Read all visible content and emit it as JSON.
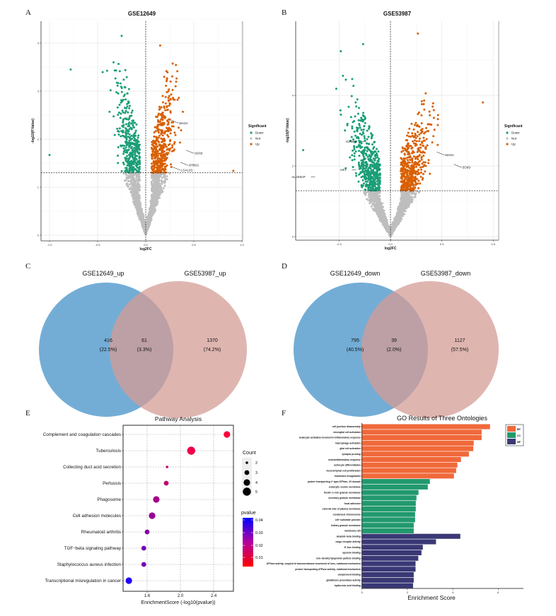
{
  "panel_labels": [
    "A",
    "B",
    "C",
    "D",
    "E",
    "F"
  ],
  "chart_data": [
    {
      "type": "scatter",
      "panel": "A",
      "title": "GSE12649",
      "xlabel": "log2FC",
      "ylabel": "-log10(P.Value)",
      "xlim": [
        -1.1,
        1.0
      ],
      "ylim": [
        -0.1,
        4.3
      ],
      "xticks": [
        "-1.0",
        "-0.5",
        "0.0",
        "0.5",
        "1.0"
      ],
      "xtick_values": [
        -1.0,
        -0.5,
        0.0,
        0.5,
        1.0
      ],
      "yticks": [
        "0",
        "1",
        "2",
        "3",
        "4"
      ],
      "ytick_values": [
        0,
        1,
        2,
        3,
        4
      ],
      "threshold_y": 1.3,
      "threshold_x": 0,
      "grid": true,
      "legend": {
        "title": "Significant",
        "placement": "right",
        "items": [
          "Down",
          "Not",
          "Up"
        ]
      },
      "colors": {
        "Down": "#1b9e77",
        "Not": "#bebebe",
        "Up": "#d95f02"
      },
      "labeled_genes": [
        {
          "gene": "MAOA",
          "x": 0.26,
          "y": 2.4,
          "group": "Up"
        },
        {
          "gene": "SOX9",
          "x": 0.42,
          "y": 1.77,
          "group": "Up"
        },
        {
          "gene": "NTRK3",
          "x": 0.36,
          "y": 1.52,
          "group": "Up"
        },
        {
          "gene": "LGALS3",
          "x": 0.28,
          "y": 1.42,
          "group": "Up"
        }
      ],
      "extreme_points": [
        {
          "x": -1.0,
          "y": 1.67,
          "group": "Down"
        },
        {
          "x": -0.78,
          "y": 3.45,
          "group": "Down"
        },
        {
          "x": -0.25,
          "y": 4.15,
          "group": "Down"
        },
        {
          "x": 0.15,
          "y": 3.95,
          "group": "Up"
        },
        {
          "x": 0.91,
          "y": 1.34,
          "group": "Up"
        }
      ]
    },
    {
      "type": "scatter",
      "panel": "B",
      "title": "GSE53987",
      "xlabel": "log2FC",
      "ylabel": "-log10(P.Value)",
      "xlim": [
        -0.55,
        0.62
      ],
      "ylim": [
        -0.1,
        5.9
      ],
      "xticks": [
        "-0.3",
        "0.0",
        "0.3",
        "0.6"
      ],
      "xtick_values": [
        -0.3,
        0.0,
        0.3,
        0.6
      ],
      "yticks": [
        "0",
        "2",
        "4"
      ],
      "ytick_values": [
        0,
        2,
        4
      ],
      "threshold_y": 1.3,
      "threshold_x": 0,
      "grid": true,
      "legend": {
        "title": "Significant",
        "placement": "right",
        "items": [
          "Down",
          "Not",
          "Up"
        ]
      },
      "colors": {
        "Down": "#1b9e77",
        "Not": "#bebebe",
        "Up": "#d95f02"
      },
      "labeled_genes": [
        {
          "gene": "IGFBP6",
          "x": -0.14,
          "y": 2.7,
          "group": "Down"
        },
        {
          "gene": "AIF1",
          "x": -0.2,
          "y": 1.9,
          "group": "Down"
        },
        {
          "gene": "ALOX5AP",
          "x": -0.44,
          "y": 1.7,
          "group": "Down"
        },
        {
          "gene": "MAOA",
          "x": 0.27,
          "y": 2.4,
          "group": "Up"
        },
        {
          "gene": "SOX9",
          "x": 0.37,
          "y": 2.05,
          "group": "Up"
        }
      ],
      "extreme_points": [
        {
          "x": -0.51,
          "y": 2.45,
          "group": "Down"
        },
        {
          "x": -0.29,
          "y": 5.25,
          "group": "Down"
        },
        {
          "x": -0.16,
          "y": 5.45,
          "group": "Down"
        },
        {
          "x": 0.16,
          "y": 5.75,
          "group": "Up"
        },
        {
          "x": 0.54,
          "y": 3.8,
          "group": "Up"
        }
      ]
    },
    {
      "type": "venn",
      "panel": "C",
      "sets": [
        "GSE12649_up",
        "GSE53987_up"
      ],
      "regions": [
        {
          "count": "416",
          "percent": "(22.5%)"
        },
        {
          "count": "61",
          "percent": "(3.3%)"
        },
        {
          "count": "1370",
          "percent": "(74.2%)"
        }
      ],
      "colors": [
        "#5b9fcf",
        "#d49c95"
      ]
    },
    {
      "type": "venn",
      "panel": "D",
      "sets": [
        "GSE12649_down",
        "GSE53987_down"
      ],
      "regions": [
        {
          "count": "795",
          "percent": "(40.5%)"
        },
        {
          "count": "39",
          "percent": "(2.0%)"
        },
        {
          "count": "1127",
          "percent": "(57.5%)"
        }
      ],
      "colors": [
        "#5b9fcf",
        "#d49c95"
      ]
    },
    {
      "type": "scatter",
      "panel": "E",
      "title": "Pathway Analysis",
      "xlabel": "EnrichmentScore (-log10(pvalue))",
      "xlim": [
        1.32,
        2.62
      ],
      "xticks": [
        "1.6",
        "2.0",
        "2.4"
      ],
      "xtick_values": [
        1.6,
        2.0,
        2.4
      ],
      "grid": true,
      "categories": [
        "Complement and coagulation cascades",
        "Tuberculosis",
        "Collecting duct acid secretion",
        "Pertussis",
        "Phagosome",
        "Cell adhesion molecules",
        "Rheumatoid arthritis",
        "TGF−beta signaling pathway",
        "Staphylococcus aureus infection",
        "Transcriptional misregulation in cancer"
      ],
      "values": [
        2.56,
        2.13,
        1.84,
        1.83,
        1.71,
        1.66,
        1.6,
        1.56,
        1.56,
        1.38
      ],
      "counts": [
        4,
        5,
        2,
        3,
        4,
        4,
        3,
        3,
        3,
        4
      ],
      "size_legend": {
        "title": "Count",
        "items": [
          "2",
          "3",
          "4",
          "5"
        ],
        "values": [
          2,
          3,
          4,
          5
        ]
      },
      "color_legend": {
        "title": "pvalue",
        "ticks": [
          "0.04",
          "0.03",
          "0.02",
          "0.01"
        ],
        "tick_values": [
          0.04,
          0.03,
          0.02,
          0.01
        ],
        "low_color": "#ff0000",
        "high_color": "#0000ff"
      }
    },
    {
      "type": "bar",
      "panel": "F",
      "orientation": "horizontal",
      "title": "GO Results of Three Ontologies",
      "xlabel": "Enrichment Score",
      "xlim": [
        0,
        7
      ],
      "xticks": [
        "0",
        "2",
        "4",
        "6"
      ],
      "xtick_values": [
        0,
        2,
        4,
        6
      ],
      "legend": {
        "placement": "top-right",
        "items": [
          "BP",
          "CC",
          "MF"
        ]
      },
      "colors": {
        "BP": "#f0693a",
        "CC": "#22996e",
        "MF": "#3a3875"
      },
      "categories": [
        "cell junction disassembly",
        "microglial cell activation",
        "leukocyte activation involved in inflammatory response",
        "macrophage activation",
        "glial cell activation",
        "synapse pruning",
        "neuroinflammatory response",
        "astrocyte differentiation",
        "mesenchymal cell proliferation",
        "membrane invagination",
        "proton−transporting V−type ATPase, V0 domain",
        "endocytic vesicle membrane",
        "ficolin−1−rich granule membrane",
        "secretory granule membrane",
        "focal adhesion",
        "external side of plasma membrane",
        "condensed chromosome",
        "cell−substrate junction",
        "tertiary granule membrane",
        "membrane raft",
        "amyloid−beta binding",
        "cargo receptor activity",
        "E−box binding",
        "opsonin binding",
        "low−density lipoprotein particle binding",
        "ATPase activity, coupled to transmembrane movement of ions, rotational mechanism",
        "proton−transporting ATPase activity, rotational mechanism",
        "complement binding",
        "glutathione peroxidase activity",
        "hyaluronic acid binding"
      ],
      "groups": [
        "BP",
        "BP",
        "BP",
        "BP",
        "BP",
        "BP",
        "BP",
        "BP",
        "BP",
        "BP",
        "CC",
        "CC",
        "CC",
        "CC",
        "CC",
        "CC",
        "CC",
        "CC",
        "CC",
        "CC",
        "MF",
        "MF",
        "MF",
        "MF",
        "MF",
        "MF",
        "MF",
        "MF",
        "MF",
        "MF"
      ],
      "values": [
        5.64,
        5.27,
        5.27,
        4.92,
        4.9,
        4.71,
        4.36,
        4.2,
        4.15,
        4.05,
        2.99,
        2.9,
        2.49,
        2.4,
        2.37,
        2.37,
        2.34,
        2.34,
        2.28,
        2.28,
        4.33,
        3.26,
        2.68,
        2.62,
        2.48,
        2.36,
        2.36,
        2.28,
        2.28,
        2.25
      ]
    }
  ]
}
